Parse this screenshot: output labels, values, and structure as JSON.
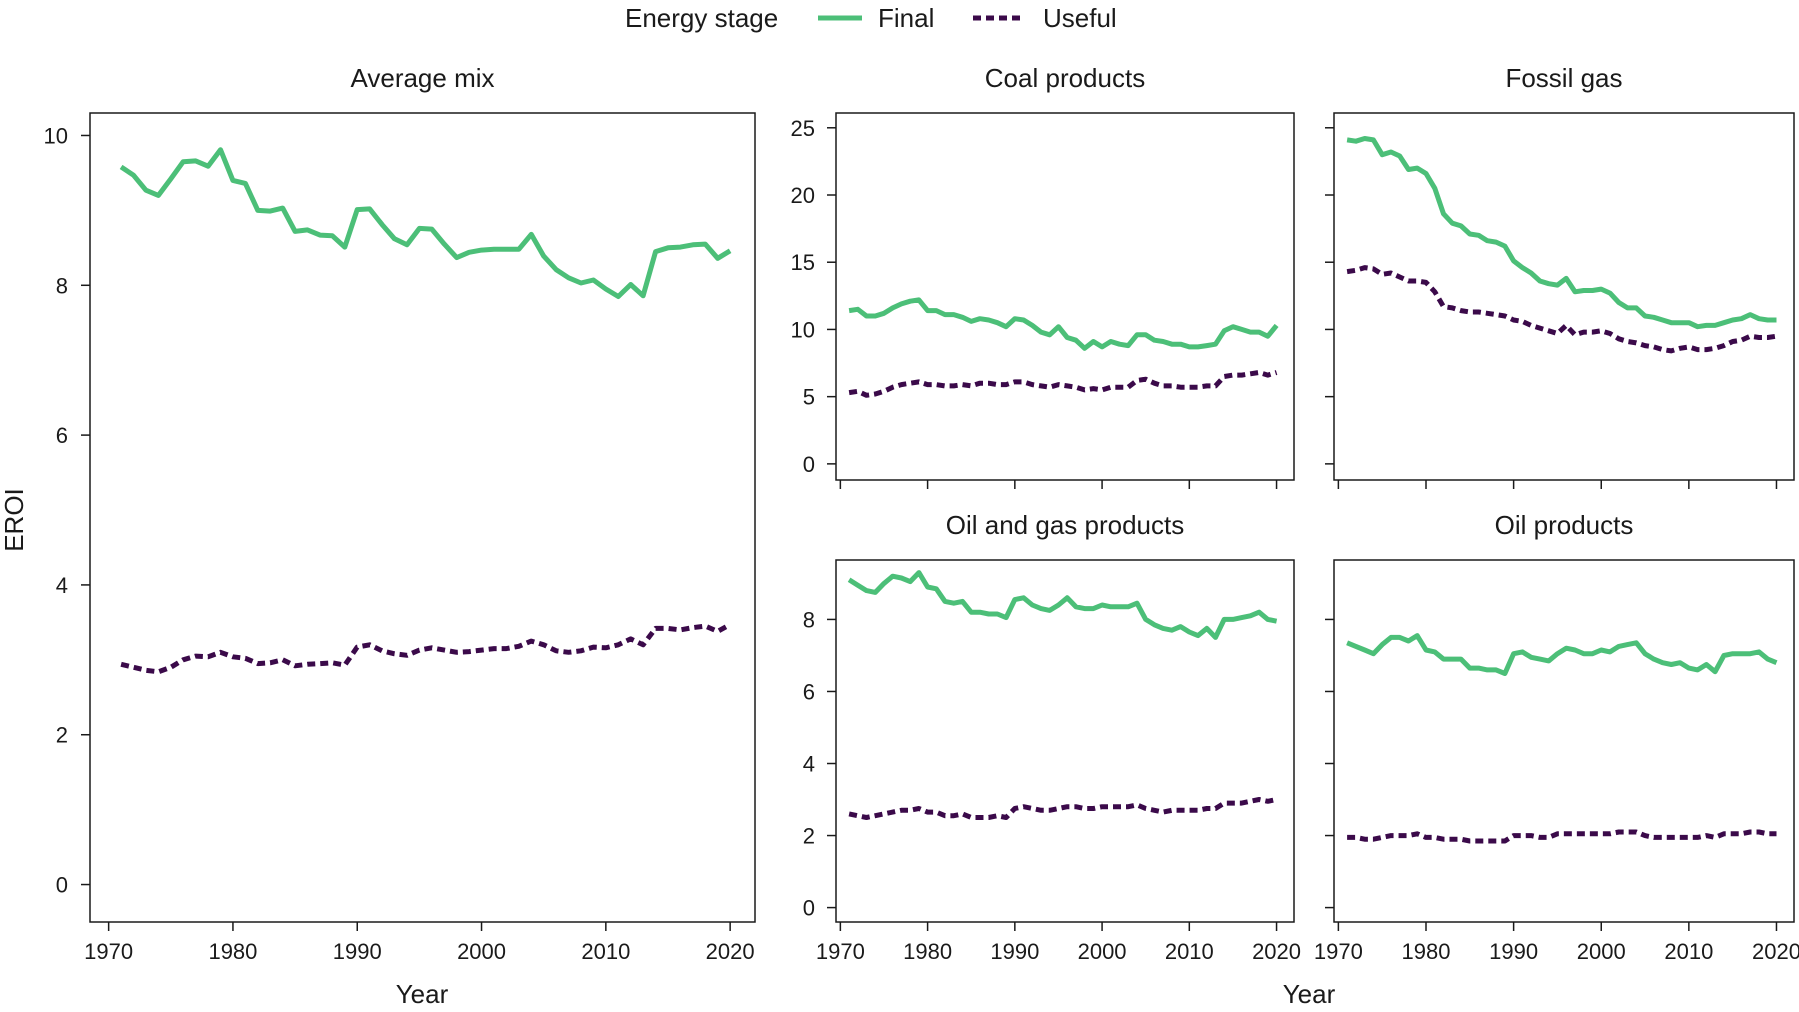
{
  "legend": {
    "title": "Energy stage",
    "items": [
      {
        "name": "Final",
        "style": "solid",
        "color": "#4CBF78"
      },
      {
        "name": "Useful",
        "style": "dashed",
        "color": "#3B0A4A"
      }
    ]
  },
  "axes": {
    "ylabel": "EROI",
    "xlabel_left": "Year",
    "xlabel_right": "Year"
  },
  "chart_data": [
    {
      "type": "line",
      "title": "Average mix",
      "xlabel": "Year",
      "ylabel": "EROI",
      "xlim": [
        1968.5,
        2022
      ],
      "ylim": [
        -0.5,
        10.3
      ],
      "xticks": [
        1970,
        1980,
        1990,
        2000,
        2010,
        2020
      ],
      "yticks": [
        0,
        2,
        4,
        6,
        8,
        10
      ],
      "x": [
        1971,
        1972,
        1973,
        1974,
        1975,
        1976,
        1977,
        1978,
        1979,
        1980,
        1981,
        1982,
        1983,
        1984,
        1985,
        1986,
        1987,
        1988,
        1989,
        1990,
        1991,
        1992,
        1993,
        1994,
        1995,
        1996,
        1997,
        1998,
        1999,
        2000,
        2001,
        2002,
        2003,
        2004,
        2005,
        2006,
        2007,
        2008,
        2009,
        2010,
        2011,
        2012,
        2013,
        2014,
        2015,
        2016,
        2017,
        2018,
        2019,
        2020
      ],
      "series": [
        {
          "name": "Final",
          "values": [
            9.58,
            9.47,
            9.27,
            9.2,
            9.42,
            9.65,
            9.66,
            9.59,
            9.81,
            9.4,
            9.36,
            9.0,
            8.99,
            9.03,
            8.72,
            8.74,
            8.67,
            8.66,
            8.51,
            9.01,
            9.02,
            8.81,
            8.62,
            8.54,
            8.76,
            8.75,
            8.55,
            8.37,
            8.44,
            8.47,
            8.48,
            8.48,
            8.48,
            8.68,
            8.39,
            8.21,
            8.1,
            8.03,
            8.07,
            7.95,
            7.85,
            8.01,
            7.86,
            8.45,
            8.5,
            8.51,
            8.54,
            8.55,
            8.36,
            8.46
          ]
        },
        {
          "name": "Useful",
          "values": [
            2.94,
            2.9,
            2.86,
            2.84,
            2.9,
            3.0,
            3.05,
            3.04,
            3.1,
            3.04,
            3.02,
            2.95,
            2.96,
            3.0,
            2.92,
            2.94,
            2.95,
            2.96,
            2.93,
            3.17,
            3.2,
            3.12,
            3.08,
            3.06,
            3.13,
            3.16,
            3.13,
            3.1,
            3.11,
            3.13,
            3.15,
            3.15,
            3.18,
            3.25,
            3.2,
            3.12,
            3.1,
            3.12,
            3.17,
            3.16,
            3.2,
            3.28,
            3.2,
            3.42,
            3.42,
            3.4,
            3.43,
            3.45,
            3.38,
            3.47
          ]
        }
      ]
    },
    {
      "type": "line",
      "title": "Coal products",
      "xlabel": "Year",
      "ylabel": "EROI",
      "xlim": [
        1969.5,
        2022
      ],
      "ylim": [
        -1.2,
        26.1
      ],
      "xticks": [
        1970,
        1980,
        1990,
        2000,
        2010,
        2020
      ],
      "yticks": [
        0,
        5,
        10,
        15,
        20,
        25
      ],
      "x": [
        1971,
        1972,
        1973,
        1974,
        1975,
        1976,
        1977,
        1978,
        1979,
        1980,
        1981,
        1982,
        1983,
        1984,
        1985,
        1986,
        1987,
        1988,
        1989,
        1990,
        1991,
        1992,
        1993,
        1994,
        1995,
        1996,
        1997,
        1998,
        1999,
        2000,
        2001,
        2002,
        2003,
        2004,
        2005,
        2006,
        2007,
        2008,
        2009,
        2010,
        2011,
        2012,
        2013,
        2014,
        2015,
        2016,
        2017,
        2018,
        2019,
        2020
      ],
      "series": [
        {
          "name": "Final",
          "values": [
            11.4,
            11.5,
            11.0,
            11.0,
            11.2,
            11.6,
            11.9,
            12.1,
            12.2,
            11.4,
            11.4,
            11.1,
            11.1,
            10.9,
            10.6,
            10.8,
            10.7,
            10.5,
            10.2,
            10.8,
            10.7,
            10.3,
            9.8,
            9.6,
            10.2,
            9.4,
            9.2,
            8.6,
            9.1,
            8.7,
            9.1,
            8.9,
            8.8,
            9.6,
            9.6,
            9.2,
            9.1,
            8.9,
            8.9,
            8.7,
            8.7,
            8.8,
            8.9,
            9.9,
            10.2,
            10.0,
            9.8,
            9.8,
            9.5,
            10.3
          ]
        },
        {
          "name": "Useful",
          "values": [
            5.3,
            5.4,
            5.1,
            5.2,
            5.4,
            5.7,
            5.9,
            6.0,
            6.1,
            5.9,
            5.9,
            5.8,
            5.8,
            5.9,
            5.8,
            6.0,
            6.0,
            5.9,
            5.9,
            6.1,
            6.1,
            5.9,
            5.8,
            5.7,
            5.9,
            5.8,
            5.7,
            5.5,
            5.6,
            5.5,
            5.7,
            5.7,
            5.7,
            6.2,
            6.3,
            6.0,
            5.8,
            5.8,
            5.7,
            5.7,
            5.7,
            5.8,
            5.8,
            6.5,
            6.6,
            6.6,
            6.7,
            6.8,
            6.6,
            6.8
          ]
        }
      ]
    },
    {
      "type": "line",
      "title": "Fossil gas",
      "xlabel": "Year",
      "ylabel": "EROI",
      "xlim": [
        1969.5,
        2022
      ],
      "ylim": [
        -1.2,
        26.1
      ],
      "xticks": [
        1970,
        1980,
        1990,
        2000,
        2010,
        2020
      ],
      "yticks": [
        0,
        5,
        10,
        15,
        20,
        25
      ],
      "x": [
        1971,
        1972,
        1973,
        1974,
        1975,
        1976,
        1977,
        1978,
        1979,
        1980,
        1981,
        1982,
        1983,
        1984,
        1985,
        1986,
        1987,
        1988,
        1989,
        1990,
        1991,
        1992,
        1993,
        1994,
        1995,
        1996,
        1997,
        1998,
        1999,
        2000,
        2001,
        2002,
        2003,
        2004,
        2005,
        2006,
        2007,
        2008,
        2009,
        2010,
        2011,
        2012,
        2013,
        2014,
        2015,
        2016,
        2017,
        2018,
        2019,
        2020
      ],
      "series": [
        {
          "name": "Final",
          "values": [
            24.1,
            24.0,
            24.2,
            24.1,
            23.0,
            23.2,
            22.9,
            21.9,
            22.0,
            21.6,
            20.5,
            18.6,
            17.9,
            17.7,
            17.1,
            17.0,
            16.6,
            16.5,
            16.2,
            15.1,
            14.6,
            14.2,
            13.6,
            13.4,
            13.3,
            13.8,
            12.8,
            12.9,
            12.9,
            13.0,
            12.7,
            12.0,
            11.6,
            11.6,
            11.0,
            10.9,
            10.7,
            10.5,
            10.5,
            10.5,
            10.2,
            10.3,
            10.3,
            10.5,
            10.7,
            10.8,
            11.1,
            10.8,
            10.7,
            10.7
          ]
        },
        {
          "name": "Useful",
          "values": [
            14.3,
            14.4,
            14.6,
            14.5,
            14.1,
            14.2,
            13.9,
            13.6,
            13.6,
            13.5,
            12.8,
            11.7,
            11.6,
            11.4,
            11.3,
            11.3,
            11.2,
            11.1,
            11.0,
            10.7,
            10.6,
            10.3,
            10.1,
            9.9,
            9.7,
            10.3,
            9.6,
            9.8,
            9.8,
            9.9,
            9.7,
            9.3,
            9.1,
            9.0,
            8.8,
            8.7,
            8.5,
            8.4,
            8.6,
            8.7,
            8.5,
            8.5,
            8.6,
            8.8,
            9.1,
            9.2,
            9.5,
            9.4,
            9.4,
            9.5
          ]
        }
      ]
    },
    {
      "type": "line",
      "title": "Oil and gas products",
      "xlabel": "Year",
      "ylabel": "EROI",
      "xlim": [
        1969.5,
        2022
      ],
      "ylim": [
        -0.4,
        9.65
      ],
      "xticks": [
        1970,
        1980,
        1990,
        2000,
        2010,
        2020
      ],
      "yticks": [
        0,
        2,
        4,
        6,
        8
      ],
      "x": [
        1971,
        1972,
        1973,
        1974,
        1975,
        1976,
        1977,
        1978,
        1979,
        1980,
        1981,
        1982,
        1983,
        1984,
        1985,
        1986,
        1987,
        1988,
        1989,
        1990,
        1991,
        1992,
        1993,
        1994,
        1995,
        1996,
        1997,
        1998,
        1999,
        2000,
        2001,
        2002,
        2003,
        2004,
        2005,
        2006,
        2007,
        2008,
        2009,
        2010,
        2011,
        2012,
        2013,
        2014,
        2015,
        2016,
        2017,
        2018,
        2019,
        2020
      ],
      "series": [
        {
          "name": "Final",
          "values": [
            9.1,
            8.95,
            8.8,
            8.75,
            9.0,
            9.2,
            9.15,
            9.05,
            9.3,
            8.9,
            8.85,
            8.5,
            8.45,
            8.5,
            8.2,
            8.2,
            8.15,
            8.15,
            8.05,
            8.55,
            8.6,
            8.4,
            8.3,
            8.25,
            8.4,
            8.6,
            8.35,
            8.3,
            8.3,
            8.4,
            8.35,
            8.35,
            8.35,
            8.45,
            8.0,
            7.85,
            7.75,
            7.7,
            7.8,
            7.65,
            7.55,
            7.75,
            7.5,
            8.0,
            8.0,
            8.05,
            8.1,
            8.2,
            8.0,
            7.95
          ]
        },
        {
          "name": "Useful",
          "values": [
            2.6,
            2.55,
            2.5,
            2.55,
            2.6,
            2.65,
            2.7,
            2.7,
            2.75,
            2.65,
            2.65,
            2.55,
            2.55,
            2.6,
            2.5,
            2.5,
            2.5,
            2.55,
            2.5,
            2.75,
            2.8,
            2.75,
            2.7,
            2.7,
            2.75,
            2.8,
            2.8,
            2.75,
            2.75,
            2.8,
            2.8,
            2.8,
            2.8,
            2.85,
            2.75,
            2.7,
            2.65,
            2.7,
            2.7,
            2.7,
            2.7,
            2.75,
            2.75,
            2.9,
            2.9,
            2.9,
            2.95,
            3.0,
            2.95,
            3.0
          ]
        }
      ]
    },
    {
      "type": "line",
      "title": "Oil products",
      "xlabel": "Year",
      "ylabel": "EROI",
      "xlim": [
        1969.5,
        2022
      ],
      "ylim": [
        -0.4,
        9.65
      ],
      "xticks": [
        1970,
        1980,
        1990,
        2000,
        2010,
        2020
      ],
      "yticks": [
        0,
        2,
        4,
        6,
        8
      ],
      "x": [
        1971,
        1972,
        1973,
        1974,
        1975,
        1976,
        1977,
        1978,
        1979,
        1980,
        1981,
        1982,
        1983,
        1984,
        1985,
        1986,
        1987,
        1988,
        1989,
        1990,
        1991,
        1992,
        1993,
        1994,
        1995,
        1996,
        1997,
        1998,
        1999,
        2000,
        2001,
        2002,
        2003,
        2004,
        2005,
        2006,
        2007,
        2008,
        2009,
        2010,
        2011,
        2012,
        2013,
        2014,
        2015,
        2016,
        2017,
        2018,
        2019,
        2020
      ],
      "series": [
        {
          "name": "Final",
          "values": [
            7.35,
            7.25,
            7.15,
            7.05,
            7.3,
            7.5,
            7.5,
            7.4,
            7.55,
            7.15,
            7.1,
            6.9,
            6.9,
            6.9,
            6.65,
            6.65,
            6.6,
            6.6,
            6.5,
            7.05,
            7.1,
            6.95,
            6.9,
            6.85,
            7.05,
            7.2,
            7.15,
            7.05,
            7.05,
            7.15,
            7.1,
            7.25,
            7.3,
            7.35,
            7.05,
            6.9,
            6.8,
            6.75,
            6.8,
            6.65,
            6.6,
            6.75,
            6.55,
            7.0,
            7.05,
            7.05,
            7.05,
            7.1,
            6.9,
            6.8
          ]
        },
        {
          "name": "Useful",
          "values": [
            1.95,
            1.95,
            1.9,
            1.9,
            1.95,
            2.0,
            2.0,
            2.0,
            2.05,
            1.95,
            1.95,
            1.9,
            1.9,
            1.9,
            1.85,
            1.85,
            1.85,
            1.85,
            1.85,
            2.0,
            2.0,
            2.0,
            1.95,
            1.95,
            2.05,
            2.05,
            2.05,
            2.05,
            2.05,
            2.05,
            2.05,
            2.1,
            2.1,
            2.1,
            2.0,
            1.95,
            1.95,
            1.95,
            1.95,
            1.95,
            1.95,
            2.0,
            1.95,
            2.05,
            2.05,
            2.05,
            2.1,
            2.1,
            2.05,
            2.05
          ]
        }
      ]
    }
  ]
}
